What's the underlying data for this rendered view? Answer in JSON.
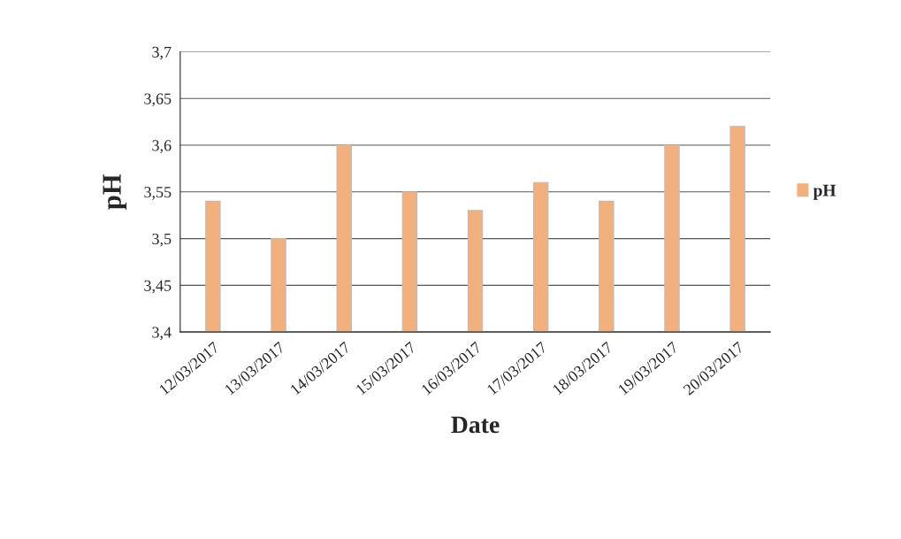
{
  "chart_data": {
    "type": "bar",
    "xlabel": "Date",
    "ylabel": "pH",
    "categories": [
      "12/03/2017",
      "13/03/2017",
      "14/03/2017",
      "15/03/2017",
      "16/03/2017",
      "17/03/2017",
      "18/03/2017",
      "19/03/2017",
      "20/03/2017"
    ],
    "series": [
      {
        "name": "pH",
        "color": "#f2b07f",
        "values": [
          3.54,
          3.5,
          3.6,
          3.55,
          3.53,
          3.56,
          3.54,
          3.6,
          3.62
        ]
      }
    ],
    "ylim": [
      3.4,
      3.7
    ],
    "yticks": [
      {
        "value": 3.4,
        "label": "3,4"
      },
      {
        "value": 3.45,
        "label": "3,45"
      },
      {
        "value": 3.5,
        "label": "3,5"
      },
      {
        "value": 3.55,
        "label": "3,55"
      },
      {
        "value": 3.6,
        "label": "3,6"
      },
      {
        "value": 3.65,
        "label": "3,65"
      },
      {
        "value": 3.7,
        "label": "3,7"
      }
    ],
    "grid": "y",
    "legend": "right"
  }
}
